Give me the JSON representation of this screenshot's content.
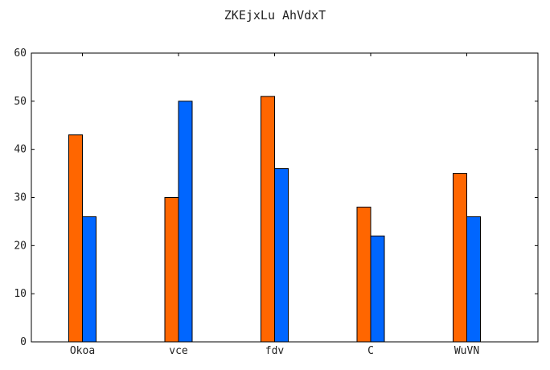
{
  "chart_data": {
    "type": "bar",
    "title": "ZKEjxLu AhVdxT",
    "xlabel": "",
    "ylabel": "",
    "categories": [
      "Okoa",
      "vce",
      "fdv",
      "C",
      "WuVN"
    ],
    "series": [
      {
        "values": [
          43,
          30,
          51,
          28,
          35
        ],
        "color": "#ff6600"
      },
      {
        "values": [
          26,
          50,
          36,
          22,
          26
        ],
        "color": "#0066ff"
      }
    ],
    "ylim": [
      0,
      60
    ],
    "yticks": [
      0,
      10,
      20,
      30,
      40,
      50,
      60
    ],
    "grid": false,
    "legend": "none"
  }
}
